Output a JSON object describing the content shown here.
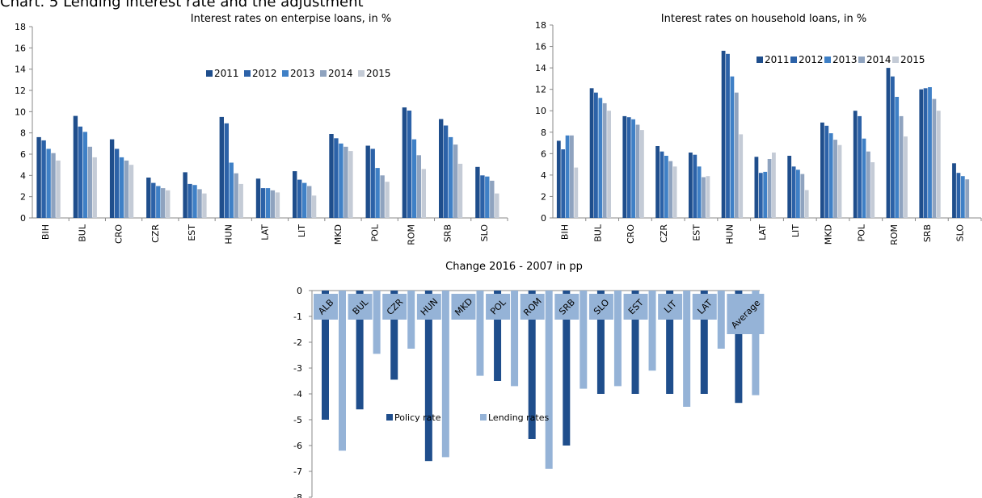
{
  "page": {
    "title": "Chart. 5 Lending interest rate and the adjustment"
  },
  "colors": {
    "2011": "#1f4e8c",
    "2012": "#2c62a8",
    "2013": "#3f80c6",
    "2014": "#8fa3bf",
    "2015": "#c4cbd6",
    "policy_rate": "#1f4e8c",
    "lending_rates": "#95b3d7",
    "label_box": "#95b3d7"
  },
  "chart_data": [
    {
      "type": "bar",
      "title": "Interest rates on enterpise loans, in %",
      "categories": [
        "BIH",
        "BUL",
        "CRO",
        "CZR",
        "EST",
        "HUN",
        "LAT",
        "LIT",
        "MKD",
        "POL",
        "ROM",
        "SRB",
        "SLO"
      ],
      "ylim": [
        0,
        18
      ],
      "yticks": [
        "0",
        "2",
        "4",
        "6",
        "8",
        "10",
        "12",
        "14",
        "16",
        "18"
      ],
      "legend_position": "top-right",
      "series": [
        {
          "name": "2011",
          "values": [
            7.6,
            9.6,
            7.4,
            3.8,
            4.3,
            9.5,
            3.7,
            4.4,
            7.9,
            6.8,
            10.4,
            9.3,
            4.8
          ]
        },
        {
          "name": "2012",
          "values": [
            7.3,
            8.6,
            6.5,
            3.3,
            3.2,
            8.9,
            2.8,
            3.6,
            7.5,
            6.5,
            10.1,
            8.7,
            4.0
          ]
        },
        {
          "name": "2013",
          "values": [
            6.5,
            8.1,
            5.7,
            3.0,
            3.1,
            5.2,
            2.8,
            3.3,
            7.0,
            4.7,
            7.4,
            7.6,
            3.9
          ]
        },
        {
          "name": "2014",
          "values": [
            6.1,
            6.7,
            5.4,
            2.8,
            2.7,
            4.2,
            2.6,
            3.0,
            6.7,
            4.0,
            5.9,
            6.9,
            3.5
          ]
        },
        {
          "name": "2015",
          "values": [
            5.4,
            5.7,
            5.0,
            2.6,
            2.3,
            3.2,
            2.4,
            2.1,
            6.3,
            3.4,
            4.6,
            5.1,
            2.3
          ]
        }
      ]
    },
    {
      "type": "bar",
      "title": "Interest rates on household loans, in %",
      "categories": [
        "BIH",
        "BUL",
        "CRO",
        "CZR",
        "EST",
        "HUN",
        "LAT",
        "LIT",
        "MKD",
        "POL",
        "ROM",
        "SRB",
        "SLO"
      ],
      "ylim": [
        0,
        18
      ],
      "yticks": [
        "0",
        "2",
        "4",
        "6",
        "8",
        "10",
        "12",
        "14",
        "16",
        "18"
      ],
      "legend_position": "top-right",
      "series": [
        {
          "name": "2011",
          "values": [
            7.2,
            12.1,
            9.5,
            6.7,
            6.1,
            15.6,
            5.7,
            5.8,
            8.9,
            10.0,
            14.0,
            12.0,
            5.1
          ]
        },
        {
          "name": "2012",
          "values": [
            6.4,
            11.7,
            9.4,
            6.2,
            5.9,
            15.3,
            4.2,
            4.8,
            8.6,
            9.5,
            13.2,
            12.1,
            4.2
          ]
        },
        {
          "name": "2013",
          "values": [
            7.7,
            11.2,
            9.2,
            5.8,
            4.8,
            13.2,
            4.3,
            4.5,
            7.9,
            7.4,
            11.3,
            12.2,
            3.9
          ]
        },
        {
          "name": "2014",
          "values": [
            7.7,
            10.7,
            8.7,
            5.3,
            3.8,
            11.7,
            5.5,
            4.1,
            7.3,
            6.2,
            9.5,
            11.1,
            3.6
          ]
        },
        {
          "name": "2015",
          "values": [
            4.7,
            10.0,
            8.2,
            4.8,
            3.9,
            7.8,
            6.1,
            2.6,
            6.8,
            5.2,
            7.6,
            10.0,
            0
          ]
        }
      ]
    },
    {
      "type": "bar",
      "title": "Change 2016 - 2007 in pp",
      "categories": [
        "ALB",
        "BUL",
        "CZR",
        "HUN",
        "MKD",
        "POL",
        "ROM",
        "SRB",
        "SLO",
        "EST",
        "LIT",
        "LAT",
        "Average"
      ],
      "ylim": [
        -8,
        0
      ],
      "yticks": [
        "0",
        "-1",
        "-2",
        "-3",
        "-4",
        "-5",
        "-6",
        "-7",
        "-8"
      ],
      "legend_position": "bottom-left",
      "series": [
        {
          "name": "Policy rate",
          "values": [
            -5.0,
            -4.6,
            -3.45,
            -6.6,
            0,
            -3.5,
            -5.75,
            -6.0,
            -4.0,
            -4.0,
            -4.0,
            -4.0,
            -4.35
          ]
        },
        {
          "name": "Lending rates",
          "values": [
            -6.2,
            -2.45,
            -2.25,
            -6.45,
            -3.3,
            -3.7,
            -6.9,
            -3.8,
            -3.7,
            -3.1,
            -4.5,
            -2.25,
            -4.05
          ]
        }
      ]
    }
  ]
}
